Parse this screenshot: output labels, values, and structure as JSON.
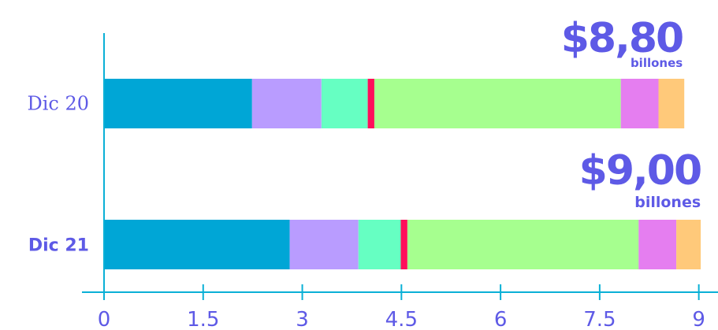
{
  "chart_data": {
    "type": "bar",
    "orientation": "horizontal",
    "stacked": true,
    "categories": [
      "Dic 20",
      "Dic 21"
    ],
    "segment_colors": [
      "#00a6d6",
      "#b99cff",
      "#66ffc2",
      "#ff0f5b",
      "#a6ff8f",
      "#e57ef0",
      "#ffc97a"
    ],
    "segments": [
      [
        2.24,
        1.05,
        0.7,
        0.1,
        3.73,
        0.57,
        0.39
      ],
      [
        2.81,
        1.04,
        0.64,
        0.1,
        3.5,
        0.57,
        0.37
      ]
    ],
    "totals": [
      {
        "value": "$8,80",
        "unit": "billones"
      },
      {
        "value": "$9,00",
        "unit": "billones"
      }
    ],
    "bold_category": "Dic 21",
    "xlim": [
      0,
      9
    ],
    "x_ticks": [
      0,
      1.5,
      3,
      4.5,
      6,
      7.5,
      9
    ],
    "x_tick_labels": [
      "0",
      "1.5",
      "3",
      "4.5",
      "6",
      "7.5",
      "9"
    ],
    "axis_color": "#0ab0d6",
    "text_color": "#5e5ae6"
  }
}
